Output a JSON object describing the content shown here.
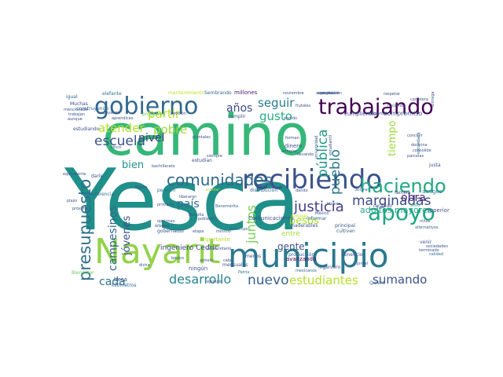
{
  "words": [
    {
      "text": "Yesca",
      "color": "#1f8f8a"
    },
    {
      "text": "camino",
      "color": "#35b779"
    },
    {
      "text": "Nayarit",
      "color": "#93d24a"
    },
    {
      "text": "municipio",
      "color": "#2a788e"
    },
    {
      "text": "recibiendo",
      "color": "#3b528b"
    },
    {
      "text": "trabajando",
      "color": "#440154"
    },
    {
      "text": "gobierno",
      "color": "#31688e"
    },
    {
      "text": "apoyo",
      "color": "#21a685"
    },
    {
      "text": "haciendo",
      "color": "#23a884"
    },
    {
      "text": "comunidades",
      "color": "#31688e"
    },
    {
      "text": "presupuesto",
      "color": "#2e6f8e"
    },
    {
      "text": "justicia",
      "color": "#424086"
    },
    {
      "text": "marginadas",
      "color": "#3e4a89"
    },
    {
      "text": "desarrollo",
      "color": "#25858e"
    },
    {
      "text": "nuevo",
      "color": "#355f8d"
    },
    {
      "text": "sumando",
      "color": "#3b528b"
    },
    {
      "text": "estudiantes",
      "color": "#b5de2b"
    },
    {
      "text": "escuela",
      "color": "#3b528b"
    },
    {
      "text": "atender",
      "color": "#b5de2b"
    },
    {
      "text": "seguir",
      "color": "#287c8e"
    },
    {
      "text": "años",
      "color": "#3e4a89"
    },
    {
      "text": "gusto",
      "color": "#26ad81"
    },
    {
      "text": "pueblo",
      "color": "#2a788e"
    },
    {
      "text": "pública",
      "color": "#1f9a8a"
    },
    {
      "text": "tiempo",
      "color": "#9bd93c"
    },
    {
      "text": "partir",
      "color": "#b5de2b"
    },
    {
      "text": "pobre",
      "color": "#9fda3a"
    },
    {
      "text": "nivel",
      "color": "#443a83"
    },
    {
      "text": "bien",
      "color": "#21918c"
    },
    {
      "text": "jóvenes",
      "color": "#3b528b"
    },
    {
      "text": "campesinos",
      "color": "#31688e"
    },
    {
      "text": "cada",
      "color": "#2c728e"
    },
    {
      "text": "país",
      "color": "#2e6e8e"
    },
    {
      "text": "juntos",
      "color": "#7ad151"
    },
    {
      "text": "pesos",
      "color": "#addc30"
    },
    {
      "text": "obra",
      "color": "#482878"
    },
    {
      "text": "adultos mayores",
      "color": "#22a785"
    },
    {
      "text": "gente",
      "color": "#3b528b"
    },
    {
      "text": "ingeniero Cedric",
      "color": "#3e4989"
    },
    {
      "text": "entre",
      "color": "#a2da37"
    },
    {
      "text": "mantenimiento",
      "color": "#bddf26"
    },
    {
      "text": "Sembrando",
      "color": "#31688e"
    },
    {
      "text": "millones",
      "color": "#481a6c"
    },
    {
      "text": "cumpliendo",
      "color": "#3e4a89"
    },
    {
      "text": "compromiso",
      "color": "#3b528b"
    },
    {
      "text": "elefante",
      "color": "#2c728e"
    },
    {
      "text": "Muchas",
      "color": "#3e4a89"
    },
    {
      "text": "programa",
      "color": "#65cb5e"
    },
    {
      "text": "estudiando",
      "color": "#3b528b"
    },
    {
      "text": "construyendo",
      "color": "#31688e"
    },
    {
      "text": "dinero",
      "color": "#3b528b"
    },
    {
      "text": "pensión",
      "color": "#2c728e"
    },
    {
      "text": "distribución",
      "color": "#31688e"
    },
    {
      "text": "familia",
      "color": "#3e4a89"
    },
    {
      "text": "amigos",
      "color": "#2a788e"
    },
    {
      "text": "superior",
      "color": "#3b528b"
    },
    {
      "text": "solo",
      "color": "#35b779"
    },
    {
      "text": "Comunicaciones",
      "color": "#3b528b"
    },
    {
      "text": "maderables",
      "color": "#3b528b"
    },
    {
      "text": "avanzando",
      "color": "#440154"
    },
    {
      "text": "ingeniero",
      "color": "#3b528b"
    },
    {
      "text": "Quiero",
      "color": "#31688e"
    },
    {
      "text": "Bienestar",
      "color": "#65cb5e"
    },
    {
      "text": "beca",
      "color": "#3b528b"
    },
    {
      "text": "kilómetros",
      "color": "#31688e"
    },
    {
      "text": "ningún",
      "color": "#3b528b"
    },
    {
      "text": "mensuales",
      "color": "#3b528b"
    },
    {
      "text": "Patria",
      "color": "#2a788e"
    },
    {
      "text": "beneficio",
      "color": "#3b528b"
    },
    {
      "text": "producción",
      "color": "#31688e"
    },
    {
      "text": "principal",
      "color": "#3b528b"
    },
    {
      "text": "cultiven",
      "color": "#31688e"
    },
    {
      "text": "jornal",
      "color": "#3b528b"
    },
    {
      "text": "gobernador",
      "color": "#3b528b"
    },
    {
      "text": "importante",
      "color": "#b5de2b"
    },
    {
      "text": "menos",
      "color": "#3b528b"
    },
    {
      "text": "filosofía",
      "color": "#3b528b"
    },
    {
      "text": "igual",
      "color": "#31688e"
    },
    {
      "text": "darle",
      "color": "#3b528b"
    },
    {
      "text": "preferencia",
      "color": "#31688e"
    },
    {
      "text": "plazo",
      "color": "#3b528b"
    },
    {
      "text": "informar",
      "color": "#31688e"
    },
    {
      "text": "México",
      "color": "#3b528b"
    },
    {
      "text": "Amigas",
      "color": "#b5de2b"
    },
    {
      "text": "recibido",
      "color": "#3b528b"
    },
    {
      "text": "aclarar",
      "color": "#31688e"
    },
    {
      "text": "ayudar",
      "color": "#b5de2b"
    },
    {
      "text": "siempre",
      "color": "#3b528b"
    },
    {
      "text": "estudian",
      "color": "#3b528b"
    },
    {
      "text": "cumplir",
      "color": "#3b528b"
    },
    {
      "text": "frutales",
      "color": "#3b528b"
    },
    {
      "text": "respetar",
      "color": "#3b528b"
    },
    {
      "text": "marginación",
      "color": "#31688e"
    },
    {
      "text": "entrega",
      "color": "#3b528b"
    },
    {
      "text": "justa",
      "color": "#3b528b"
    },
    {
      "text": "venir",
      "color": "#3b528b"
    },
    {
      "text": "calidad",
      "color": "#31688e"
    },
    {
      "text": "terminado",
      "color": "#3b528b"
    },
    {
      "text": "secundaria",
      "color": "#31688e"
    },
    {
      "text": "carretera",
      "color": "#3b528b"
    },
    {
      "text": "alternativos",
      "color": "#31688e"
    },
    {
      "text": "Madre",
      "color": "#3b528b"
    },
    {
      "text": "liberaron",
      "color": "#3b528b"
    },
    {
      "text": "básico",
      "color": "#3b528b"
    },
    {
      "text": "primaria",
      "color": "#3b528b"
    },
    {
      "text": "universitario",
      "color": "#3b528b"
    },
    {
      "text": "opciones",
      "color": "#3b528b"
    },
    {
      "text": "árboles",
      "color": "#3b528b"
    },
    {
      "text": "etapa",
      "color": "#3b528b"
    },
    {
      "text": "mínimo",
      "color": "#3b528b"
    },
    {
      "text": "Procampo",
      "color": "#31688e"
    },
    {
      "text": "anhelo",
      "color": "#3b528b"
    },
    {
      "text": "Benemérita",
      "color": "#31688e"
    },
    {
      "text": "cabo",
      "color": "#3b528b"
    },
    {
      "text": "dicha",
      "color": "#3b528b"
    },
    {
      "text": "ejemplo",
      "color": "#3b528b"
    },
    {
      "text": "población",
      "color": "#3b528b"
    },
    {
      "text": "inicial",
      "color": "#3b528b"
    },
    {
      "text": "dando",
      "color": "#3b528b"
    },
    {
      "text": "Vicario",
      "color": "#3b528b"
    },
    {
      "text": "mexicanos",
      "color": "#31688e"
    },
    {
      "text": "bachillerato",
      "color": "#3b528b"
    },
    {
      "text": "plantales",
      "color": "#3b528b"
    },
    {
      "text": "petición",
      "color": "#3b528b"
    },
    {
      "text": "podido",
      "color": "#3b528b"
    },
    {
      "text": "forman",
      "color": "#3b528b"
    },
    {
      "text": "arreglar",
      "color": "#3b528b"
    },
    {
      "text": "llevando",
      "color": "#3b528b"
    },
    {
      "text": "supervisión",
      "color": "#3b528b"
    },
    {
      "text": "recibieron",
      "color": "#3b528b"
    },
    {
      "text": "hacemos",
      "color": "#3b528b"
    },
    {
      "text": "concluir",
      "color": "#3b528b"
    },
    {
      "text": "doctrina",
      "color": "#3b528b"
    },
    {
      "text": "consolide",
      "color": "#3b528b"
    },
    {
      "text": "parcelas",
      "color": "#3b528b"
    },
    {
      "text": "trabajan",
      "color": "#3b528b"
    },
    {
      "text": "aunque",
      "color": "#3b528b"
    },
    {
      "text": "aprendices",
      "color": "#3b528b"
    },
    {
      "text": "apoyando",
      "color": "#3b528b"
    },
    {
      "text": "cinco",
      "color": "#3b528b"
    },
    {
      "text": "noviembre",
      "color": "#3b528b"
    },
    {
      "text": "equivalente",
      "color": "#3b528b"
    },
    {
      "text": "próximo",
      "color": "#3b528b"
    },
    {
      "text": "universidad",
      "color": "#3b528b"
    },
    {
      "text": "estudiantil",
      "color": "#3b528b"
    },
    {
      "text": "comuneros",
      "color": "#3b528b"
    },
    {
      "text": "sociedades",
      "color": "#3b528b"
    },
    {
      "text": "niños",
      "color": "#3b528b"
    },
    {
      "text": "mencionado",
      "color": "#3b528b"
    }
  ]
}
